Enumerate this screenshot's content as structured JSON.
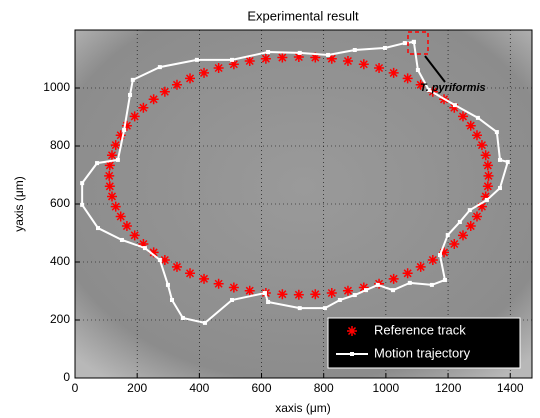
{
  "chart_data": {
    "type": "scatter",
    "title": "Experimental result",
    "x_label": "xaxis (μm)",
    "y_label": "yaxis (μm)",
    "xlim": [
      0,
      1470
    ],
    "ylim": [
      0,
      1200
    ],
    "xticks": [
      0,
      200,
      400,
      600,
      800,
      1000,
      1200,
      1400
    ],
    "yticks": [
      0,
      200,
      400,
      600,
      800,
      1000
    ],
    "grid": true,
    "legend": "lower right",
    "annotation": "T. pyriformis",
    "annotation_xy": [
      1215,
      1000
    ],
    "series": [
      {
        "name": "Reference track",
        "color": "#ff0000",
        "marker": "asterisk",
        "x": [
          1330,
          1328,
          1321,
          1309,
          1293,
          1273,
          1248,
          1220,
          1187,
          1151,
          1112,
          1070,
          1025,
          978,
          929,
          878,
          826,
          773,
          720,
          667,
          614,
          562,
          511,
          462,
          415,
          370,
          328,
          289,
          253,
          220,
          192,
          167,
          147,
          131,
          119,
          112,
          110,
          112,
          119,
          131,
          147,
          167,
          192,
          220,
          253,
          289,
          328,
          370,
          415,
          462,
          511,
          562,
          614,
          667,
          720,
          773,
          826,
          878,
          929,
          978,
          1025,
          1070,
          1112,
          1151,
          1187,
          1220,
          1248,
          1273,
          1293,
          1309,
          1321,
          1328
        ],
        "y": [
          697,
          733,
          768,
          803,
          837,
          870,
          902,
          932,
          961,
          987,
          1011,
          1033,
          1052,
          1069,
          1082,
          1093,
          1101,
          1105,
          1107,
          1105,
          1101,
          1093,
          1082,
          1069,
          1052,
          1033,
          1011,
          987,
          961,
          932,
          902,
          870,
          837,
          803,
          768,
          733,
          697,
          661,
          626,
          591,
          557,
          524,
          492,
          462,
          433,
          407,
          383,
          361,
          342,
          325,
          312,
          301,
          293,
          289,
          287,
          289,
          293,
          301,
          312,
          325,
          342,
          361,
          383,
          407,
          433,
          462,
          492,
          524,
          557,
          591,
          626,
          661
        ]
      },
      {
        "name": "Motion trajectory",
        "color": "#ffffff",
        "marker": "square",
        "x": [
          1090,
          1103,
          1138,
          1222,
          1296,
          1357,
          1367,
          1392,
          1367,
          1325,
          1270,
          1238,
          1199,
          1174,
          1190,
          1148,
          1077,
          1023,
          974,
          936,
          900,
          852,
          804,
          723,
          621,
          611,
          505,
          418,
          347,
          312,
          299,
          273,
          225,
          151,
          74,
          23,
          23,
          71,
          138,
          158,
          177,
          186,
          273,
          392,
          505,
          621,
          723,
          814,
          900,
          997,
          1061,
          1090
        ],
        "y": [
          1159,
          1062,
          993,
          941,
          897,
          848,
          752,
          745,
          655,
          614,
          579,
          538,
          493,
          424,
          338,
          321,
          328,
          303,
          321,
          303,
          286,
          269,
          241,
          241,
          262,
          293,
          269,
          190,
          207,
          269,
          321,
          407,
          448,
          476,
          517,
          597,
          672,
          741,
          752,
          855,
          976,
          1028,
          1072,
          1097,
          1097,
          1124,
          1121,
          1114,
          1131,
          1138,
          1155,
          1159
        ]
      }
    ]
  }
}
